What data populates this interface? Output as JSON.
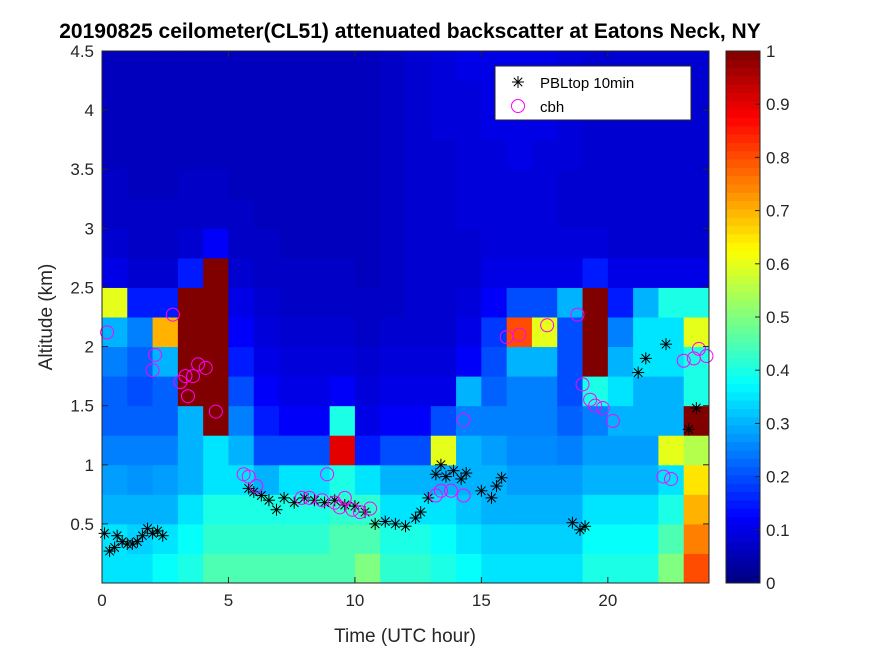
{
  "chart_data": {
    "type": "heatmap",
    "title": "20190825 ceilometer(CL51) attenuated backscatter at Eatons Neck, NY",
    "xlabel": "Time (UTC hour)",
    "ylabel": "Altitude (km)",
    "xlim": [
      0,
      24
    ],
    "ylim": [
      0,
      4.5
    ],
    "xticks": [
      "0",
      "5",
      "10",
      "15",
      "20"
    ],
    "yticks": [
      "0.5",
      "1",
      "1.5",
      "2",
      "2.5",
      "3",
      "3.5",
      "4",
      "4.5"
    ],
    "colormap": "jet",
    "clim": [
      0,
      1
    ],
    "colorbar_ticks": [
      "0",
      "0.1",
      "0.2",
      "0.3",
      "0.4",
      "0.5",
      "0.6",
      "0.7",
      "0.8",
      "0.9",
      "1"
    ],
    "legend_position": "top-right",
    "grid": false,
    "heatmap": {
      "x_hours": [
        0,
        1,
        2,
        3,
        4,
        5,
        6,
        7,
        8,
        9,
        10,
        11,
        12,
        13,
        14,
        15,
        16,
        17,
        18,
        19,
        20,
        21,
        22,
        23
      ],
      "altitude_bins_km": [
        0,
        0.25,
        0.5,
        0.75,
        1,
        1.25,
        1.5,
        1.75,
        2,
        2.25,
        2.5,
        2.75,
        3,
        3.25,
        3.5,
        3.75,
        4,
        4.25
      ],
      "values": [
        [
          0.35,
          0.35,
          0.3,
          0.28,
          0.25,
          0.22,
          0.22,
          0.25,
          0.3,
          0.6,
          0.1,
          0.08,
          0.07,
          0.07,
          0.06,
          0.06,
          0.06,
          0.06
        ],
        [
          0.35,
          0.33,
          0.3,
          0.27,
          0.25,
          0.22,
          0.2,
          0.22,
          0.25,
          0.15,
          0.08,
          0.07,
          0.07,
          0.06,
          0.06,
          0.06,
          0.06,
          0.06
        ],
        [
          0.38,
          0.35,
          0.3,
          0.28,
          0.25,
          0.22,
          0.22,
          0.3,
          0.7,
          0.15,
          0.08,
          0.07,
          0.07,
          0.06,
          0.06,
          0.06,
          0.06,
          0.06
        ],
        [
          0.4,
          0.38,
          0.35,
          0.3,
          0.3,
          0.3,
          1,
          1,
          1,
          1,
          0.15,
          0.08,
          0.07,
          0.07,
          0.06,
          0.06,
          0.06,
          0.06
        ],
        [
          0.45,
          0.42,
          0.4,
          0.35,
          0.35,
          1,
          1,
          1,
          1,
          1,
          1,
          0.12,
          0.07,
          0.07,
          0.06,
          0.06,
          0.06,
          0.06
        ],
        [
          0.45,
          0.42,
          0.4,
          0.35,
          0.3,
          0.25,
          0.2,
          0.15,
          0.12,
          0.1,
          0.08,
          0.07,
          0.07,
          0.06,
          0.06,
          0.06,
          0.06,
          0.06
        ],
        [
          0.45,
          0.42,
          0.4,
          0.3,
          0.2,
          0.15,
          0.12,
          0.1,
          0.09,
          0.08,
          0.07,
          0.07,
          0.06,
          0.06,
          0.06,
          0.06,
          0.06,
          0.06
        ],
        [
          0.45,
          0.42,
          0.4,
          0.35,
          0.2,
          0.12,
          0.1,
          0.09,
          0.08,
          0.07,
          0.07,
          0.06,
          0.06,
          0.06,
          0.06,
          0.06,
          0.06,
          0.06
        ],
        [
          0.45,
          0.42,
          0.4,
          0.35,
          0.2,
          0.12,
          0.1,
          0.09,
          0.08,
          0.07,
          0.07,
          0.06,
          0.06,
          0.06,
          0.06,
          0.06,
          0.06,
          0.06
        ],
        [
          0.45,
          0.45,
          0.42,
          0.4,
          0.9,
          0.4,
          0.12,
          0.09,
          0.08,
          0.07,
          0.07,
          0.06,
          0.06,
          0.06,
          0.06,
          0.06,
          0.06,
          0.06
        ],
        [
          0.5,
          0.45,
          0.42,
          0.35,
          0.15,
          0.1,
          0.09,
          0.08,
          0.07,
          0.07,
          0.06,
          0.06,
          0.06,
          0.06,
          0.06,
          0.06,
          0.06,
          0.06
        ],
        [
          0.42,
          0.4,
          0.35,
          0.3,
          0.2,
          0.12,
          0.1,
          0.09,
          0.08,
          0.07,
          0.07,
          0.07,
          0.07,
          0.07,
          0.07,
          0.07,
          0.07,
          0.07
        ],
        [
          0.42,
          0.4,
          0.35,
          0.3,
          0.2,
          0.12,
          0.1,
          0.09,
          0.08,
          0.08,
          0.08,
          0.08,
          0.08,
          0.08,
          0.08,
          0.08,
          0.08,
          0.08
        ],
        [
          0.4,
          0.38,
          0.35,
          0.3,
          0.6,
          0.2,
          0.1,
          0.09,
          0.08,
          0.08,
          0.08,
          0.08,
          0.08,
          0.08,
          0.08,
          0.09,
          0.09,
          0.09
        ],
        [
          0.38,
          0.35,
          0.32,
          0.3,
          0.3,
          0.25,
          0.3,
          0.12,
          0.1,
          0.09,
          0.08,
          0.08,
          0.09,
          0.09,
          0.09,
          0.09,
          0.09,
          0.1
        ],
        [
          0.35,
          0.33,
          0.3,
          0.3,
          0.28,
          0.25,
          0.22,
          0.2,
          0.18,
          0.12,
          0.1,
          0.09,
          0.09,
          0.09,
          0.09,
          0.1,
          0.1,
          0.1
        ],
        [
          0.35,
          0.33,
          0.3,
          0.28,
          0.26,
          0.25,
          0.25,
          0.3,
          0.8,
          0.2,
          0.1,
          0.09,
          0.09,
          0.09,
          0.1,
          0.1,
          0.1,
          0.1
        ],
        [
          0.35,
          0.33,
          0.3,
          0.28,
          0.26,
          0.25,
          0.25,
          0.3,
          0.6,
          0.2,
          0.1,
          0.09,
          0.09,
          0.09,
          0.09,
          0.1,
          0.1,
          0.1
        ],
        [
          0.35,
          0.33,
          0.3,
          0.28,
          0.25,
          0.22,
          0.2,
          0.2,
          0.2,
          0.3,
          0.1,
          0.09,
          0.08,
          0.08,
          0.09,
          0.09,
          0.09,
          0.09
        ],
        [
          0.4,
          0.38,
          0.35,
          0.3,
          0.28,
          0.25,
          0.4,
          1,
          1,
          1,
          0.15,
          0.09,
          0.08,
          0.08,
          0.08,
          0.08,
          0.08,
          0.08
        ],
        [
          0.4,
          0.38,
          0.35,
          0.3,
          0.28,
          0.3,
          0.35,
          0.3,
          0.25,
          0.15,
          0.1,
          0.08,
          0.08,
          0.08,
          0.08,
          0.08,
          0.08,
          0.08
        ],
        [
          0.4,
          0.38,
          0.35,
          0.3,
          0.28,
          0.3,
          0.3,
          0.35,
          0.35,
          0.3,
          0.1,
          0.08,
          0.08,
          0.08,
          0.08,
          0.08,
          0.08,
          0.08
        ],
        [
          0.5,
          0.45,
          0.4,
          0.35,
          0.6,
          0.3,
          0.3,
          0.35,
          0.35,
          0.4,
          0.1,
          0.08,
          0.08,
          0.08,
          0.08,
          0.08,
          0.08,
          0.08
        ],
        [
          0.8,
          0.75,
          0.7,
          0.65,
          0.55,
          1,
          0.4,
          0.4,
          0.6,
          0.4,
          0.1,
          0.08,
          0.08,
          0.08,
          0.08,
          0.08,
          0.08,
          0.08
        ]
      ]
    },
    "series": [
      {
        "name": "PBLtop 10min",
        "marker": "asterisk",
        "color": "#000000",
        "points": [
          [
            0.1,
            0.42
          ],
          [
            0.3,
            0.27
          ],
          [
            0.5,
            0.3
          ],
          [
            0.6,
            0.4
          ],
          [
            0.8,
            0.35
          ],
          [
            1.0,
            0.33
          ],
          [
            1.2,
            0.33
          ],
          [
            1.4,
            0.35
          ],
          [
            1.6,
            0.4
          ],
          [
            1.8,
            0.46
          ],
          [
            2.0,
            0.42
          ],
          [
            2.2,
            0.44
          ],
          [
            2.4,
            0.4
          ],
          [
            5.8,
            0.8
          ],
          [
            6.0,
            0.77
          ],
          [
            6.3,
            0.74
          ],
          [
            6.6,
            0.7
          ],
          [
            6.9,
            0.62
          ],
          [
            7.2,
            0.72
          ],
          [
            7.6,
            0.68
          ],
          [
            8.0,
            0.72
          ],
          [
            8.4,
            0.7
          ],
          [
            8.8,
            0.68
          ],
          [
            9.2,
            0.7
          ],
          [
            9.6,
            0.66
          ],
          [
            10.0,
            0.65
          ],
          [
            10.4,
            0.6
          ],
          [
            10.8,
            0.5
          ],
          [
            11.2,
            0.52
          ],
          [
            11.6,
            0.5
          ],
          [
            12.0,
            0.48
          ],
          [
            12.4,
            0.55
          ],
          [
            12.6,
            0.6
          ],
          [
            12.9,
            0.72
          ],
          [
            13.2,
            0.92
          ],
          [
            13.4,
            1.0
          ],
          [
            13.6,
            0.9
          ],
          [
            13.9,
            0.95
          ],
          [
            14.2,
            0.88
          ],
          [
            14.4,
            0.93
          ],
          [
            15.0,
            0.78
          ],
          [
            15.4,
            0.72
          ],
          [
            15.6,
            0.82
          ],
          [
            15.8,
            0.89
          ],
          [
            18.6,
            0.51
          ],
          [
            18.9,
            0.45
          ],
          [
            19.1,
            0.48
          ],
          [
            21.2,
            1.78
          ],
          [
            21.5,
            1.9
          ],
          [
            22.3,
            2.02
          ],
          [
            23.2,
            1.3
          ],
          [
            23.5,
            1.48
          ]
        ]
      },
      {
        "name": "cbh",
        "marker": "circle",
        "color": "#ff00ff",
        "points": [
          [
            0.2,
            2.12
          ],
          [
            2.0,
            1.8
          ],
          [
            2.1,
            1.93
          ],
          [
            2.8,
            2.27
          ],
          [
            3.1,
            1.7
          ],
          [
            3.3,
            1.75
          ],
          [
            3.4,
            1.58
          ],
          [
            3.6,
            1.75
          ],
          [
            3.8,
            1.85
          ],
          [
            4.1,
            1.82
          ],
          [
            4.5,
            1.45
          ],
          [
            5.6,
            0.92
          ],
          [
            5.8,
            0.9
          ],
          [
            6.1,
            0.82
          ],
          [
            7.9,
            0.72
          ],
          [
            8.2,
            0.72
          ],
          [
            8.7,
            0.7
          ],
          [
            8.9,
            0.92
          ],
          [
            9.2,
            0.68
          ],
          [
            9.4,
            0.64
          ],
          [
            9.6,
            0.72
          ],
          [
            9.9,
            0.62
          ],
          [
            10.2,
            0.6
          ],
          [
            10.6,
            0.63
          ],
          [
            13.2,
            0.74
          ],
          [
            13.4,
            0.78
          ],
          [
            13.8,
            0.78
          ],
          [
            14.3,
            0.74
          ],
          [
            14.3,
            1.38
          ],
          [
            16.0,
            2.08
          ],
          [
            16.5,
            2.1
          ],
          [
            17.6,
            2.18
          ],
          [
            18.8,
            2.27
          ],
          [
            19.0,
            1.68
          ],
          [
            19.3,
            1.55
          ],
          [
            19.5,
            1.5
          ],
          [
            19.8,
            1.48
          ],
          [
            20.2,
            1.37
          ],
          [
            22.2,
            0.9
          ],
          [
            22.5,
            0.88
          ],
          [
            23.0,
            1.88
          ],
          [
            23.4,
            1.9
          ],
          [
            23.6,
            1.98
          ],
          [
            23.9,
            1.92
          ]
        ]
      }
    ]
  }
}
